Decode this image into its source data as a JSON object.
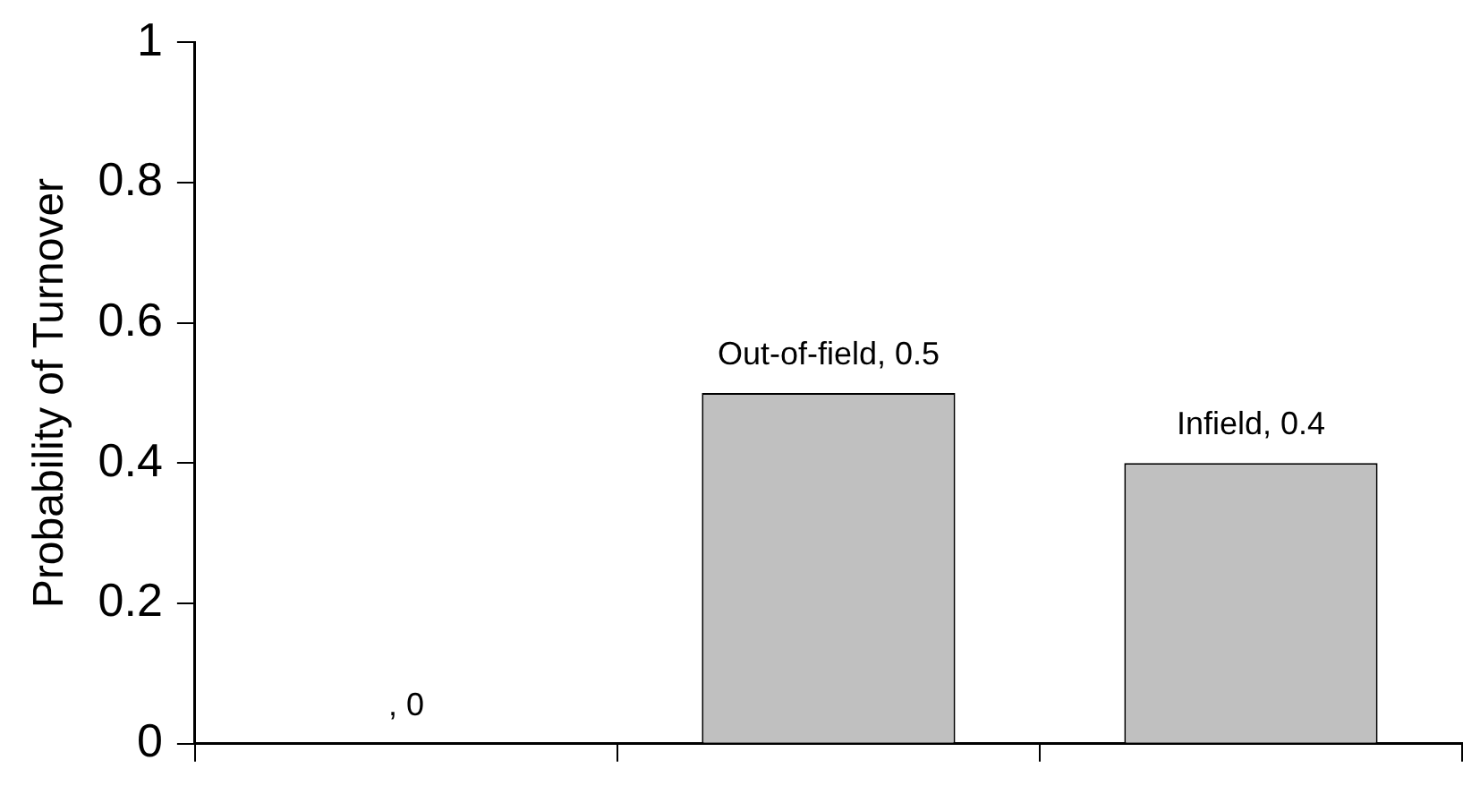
{
  "chart_data": {
    "type": "bar",
    "ylabel": "Probability of Turnover",
    "categories": [
      null,
      null,
      null
    ],
    "values": [
      0,
      0.5,
      0.4
    ],
    "value_labels": [
      ", 0",
      "Out-of-field, 0.5",
      "Infield, 0.4"
    ],
    "color": "#c0c0c0",
    "ylim": [
      0,
      1
    ],
    "yticks": [
      0,
      0.2,
      0.4,
      0.6,
      0.8,
      1
    ],
    "grid": false,
    "legend": false,
    "tick_labels": "y"
  }
}
